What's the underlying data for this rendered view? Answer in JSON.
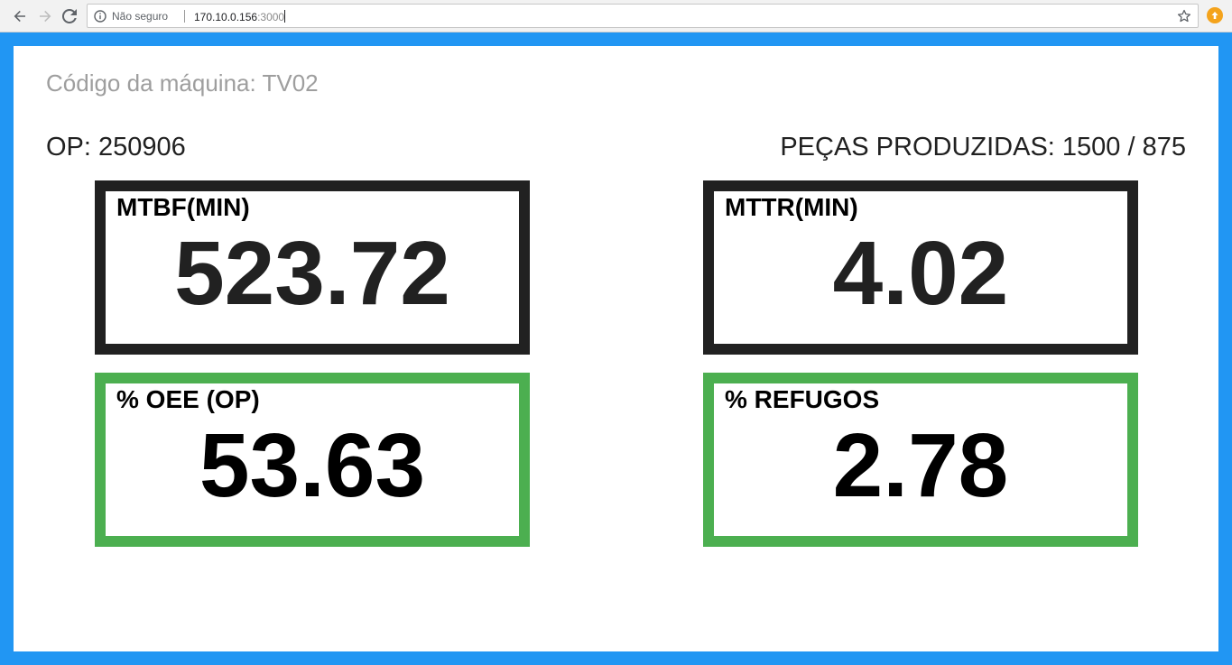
{
  "browser": {
    "insecure_label": "Não seguro",
    "url_host": "170.10.0.156",
    "url_port": ":3000",
    "icons": {
      "back": "back-arrow-icon",
      "forward": "forward-arrow-icon",
      "reload": "reload-icon",
      "info": "info-icon",
      "bookmark": "star-icon",
      "extension": "extension-icon"
    }
  },
  "page": {
    "frame_color": "#2196f3",
    "machine_code": "Código da máquina: TV02",
    "op": "OP: 250906",
    "pecas": "PEÇAS PRODUZIDAS: 1500 / 875"
  },
  "cards": {
    "mtbf": {
      "label": "MTBF(MIN)",
      "value": "523.72",
      "border_color": "#212121"
    },
    "mttr": {
      "label": "MTTR(MIN)",
      "value": "4.02",
      "border_color": "#212121"
    },
    "oee": {
      "label": "% OEE (OP)",
      "value": "53.63",
      "border_color": "#4caf50"
    },
    "refugos": {
      "label": "% REFUGOS",
      "value": "2.78",
      "border_color": "#4caf50"
    }
  }
}
